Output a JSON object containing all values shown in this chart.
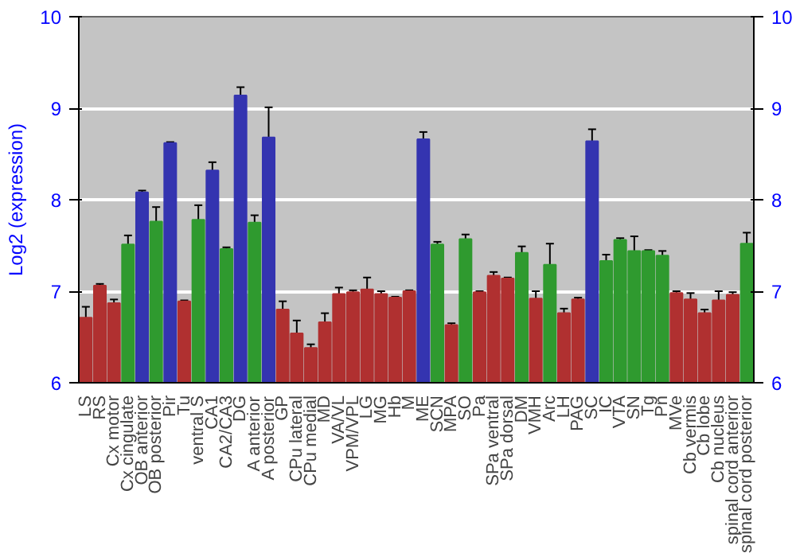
{
  "chart_data": {
    "type": "bar",
    "ylabel": "Log2 (expression)",
    "categories": [
      "LS",
      "RS",
      "Cx motor",
      "Cx cingulate",
      "OB anterior",
      "OB posterior",
      "Pir",
      "Tu",
      "ventral S",
      "CA1",
      "CA2/CA3",
      "DG",
      "A anterior",
      "A posterior",
      "GP",
      "CPu lateral",
      "CPu medial",
      "MD",
      "VA/VL",
      "VPM/VPL",
      "LG",
      "MG",
      "Hb",
      "M",
      "ME",
      "SCN",
      "MPA",
      "SO",
      "Pa",
      "SPa ventral",
      "SPa dorsal",
      "DM",
      "VMH",
      "Arc",
      "LH",
      "PAG",
      "SC",
      "IC",
      "VTA",
      "SN",
      "Tg",
      "Pn",
      "MVe",
      "Cb vermis",
      "Cb lobe",
      "Cb nucleus",
      "spinal cord anterior",
      "spinal cord posterior"
    ],
    "values": [
      6.71,
      7.06,
      6.87,
      7.51,
      8.08,
      7.76,
      8.62,
      6.89,
      7.78,
      8.32,
      7.46,
      9.14,
      7.75,
      8.68,
      6.8,
      6.54,
      6.38,
      6.66,
      6.97,
      6.99,
      7.02,
      6.97,
      6.93,
      7.0,
      8.66,
      7.51,
      6.63,
      7.57,
      6.99,
      7.17,
      7.14,
      7.42,
      6.92,
      7.29,
      6.76,
      6.91,
      8.64,
      7.33,
      7.56,
      7.44,
      7.44,
      7.39,
      6.98,
      6.91,
      6.76,
      6.9,
      6.96,
      7.52
    ],
    "errors": [
      0.12,
      0.02,
      0.04,
      0.1,
      0.02,
      0.16,
      0.01,
      0.01,
      0.16,
      0.09,
      0.02,
      0.09,
      0.08,
      0.33,
      0.09,
      0.14,
      0.04,
      0.1,
      0.07,
      0.02,
      0.13,
      0.03,
      0.01,
      0.01,
      0.08,
      0.03,
      0.02,
      0.05,
      0.01,
      0.04,
      0.01,
      0.07,
      0.08,
      0.23,
      0.05,
      0.02,
      0.13,
      0.07,
      0.02,
      0.16,
      0.01,
      0.05,
      0.02,
      0.07,
      0.04,
      0.1,
      0.03,
      0.12
    ],
    "colors": [
      "#b03030",
      "#b03030",
      "#b03030",
      "#2f9a2f",
      "#3434b0",
      "#2f9a2f",
      "#3434b0",
      "#b03030",
      "#2f9a2f",
      "#3434b0",
      "#2f9a2f",
      "#3434b0",
      "#2f9a2f",
      "#3434b0",
      "#b03030",
      "#b03030",
      "#b03030",
      "#b03030",
      "#b03030",
      "#b03030",
      "#b03030",
      "#b03030",
      "#b03030",
      "#b03030",
      "#3434b0",
      "#2f9a2f",
      "#b03030",
      "#2f9a2f",
      "#b03030",
      "#b03030",
      "#b03030",
      "#2f9a2f",
      "#b03030",
      "#2f9a2f",
      "#b03030",
      "#b03030",
      "#3434b0",
      "#2f9a2f",
      "#2f9a2f",
      "#2f9a2f",
      "#2f9a2f",
      "#2f9a2f",
      "#b03030",
      "#b03030",
      "#b03030",
      "#b03030",
      "#b03030",
      "#2f9a2f"
    ],
    "ylim": [
      6,
      10
    ],
    "yticks": [
      6,
      7,
      8,
      9,
      10
    ],
    "y2lim": [
      6,
      10
    ],
    "y2ticks": [
      6,
      7,
      8,
      9,
      10
    ],
    "grid": "y"
  }
}
